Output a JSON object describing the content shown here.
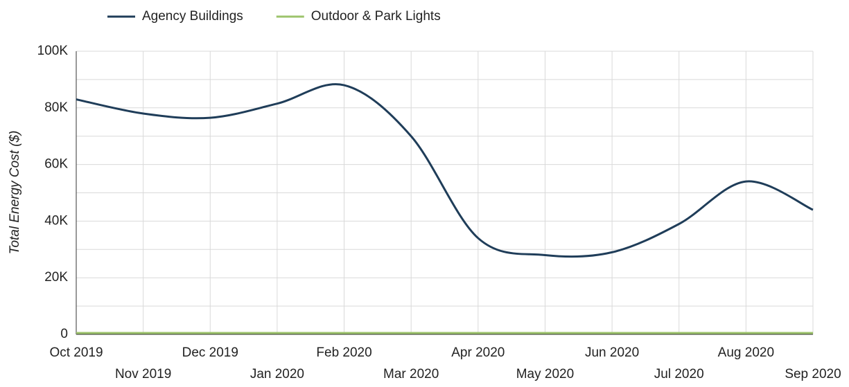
{
  "chart_data": {
    "type": "line",
    "y_label": "Total Energy Cost ($)",
    "categories": [
      "Oct 2019",
      "Nov 2019",
      "Dec 2019",
      "Jan 2020",
      "Feb 2020",
      "Mar 2020",
      "Apr 2020",
      "May 2020",
      "Jun 2020",
      "Jul 2020",
      "Aug 2020",
      "Sep 2020"
    ],
    "series": [
      {
        "name": "Agency Buildings",
        "color": "#1f3d59",
        "values": [
          83000,
          78000,
          76500,
          81500,
          88000,
          70000,
          34000,
          28000,
          29000,
          39000,
          54000,
          44000
        ]
      },
      {
        "name": "Outdoor & Park Lights",
        "color": "#9cc36b",
        "values": [
          500,
          500,
          500,
          500,
          500,
          500,
          500,
          500,
          500,
          500,
          500,
          500
        ]
      }
    ],
    "ylim": [
      0,
      100000
    ],
    "yticks": [
      0,
      {
        "value": 20000,
        "label": "20K"
      },
      {
        "value": 40000,
        "label": "40K"
      },
      {
        "value": 60000,
        "label": "60K"
      },
      {
        "value": 80000,
        "label": "80K"
      },
      {
        "value": 100000,
        "label": "100K"
      }
    ],
    "minor_yticks": [
      10000,
      30000,
      50000,
      70000,
      90000
    ],
    "grid": true,
    "legend": "top"
  }
}
